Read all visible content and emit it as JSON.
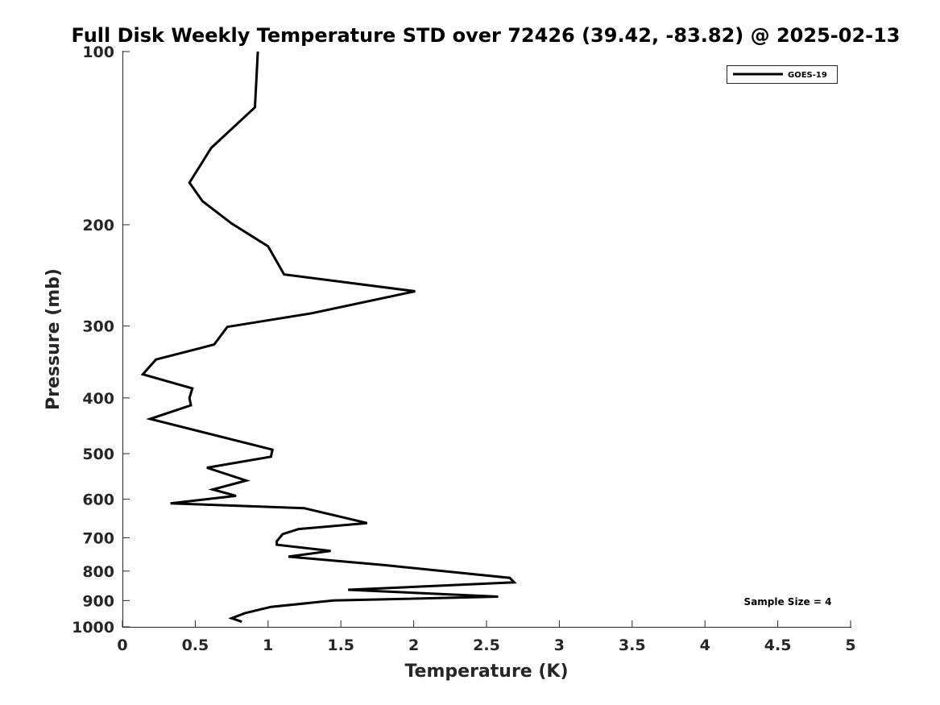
{
  "chart_data": {
    "type": "line",
    "title": "Full Disk Weekly Temperature STD over 72426 (39.42, -83.82) @ 2025-02-13",
    "xlabel": "Temperature (K)",
    "ylabel": "Pressure (mb)",
    "xlim": [
      0,
      5
    ],
    "ylim": [
      100,
      1000
    ],
    "yscale": "log",
    "yreversed": true,
    "xticks": [
      0,
      0.5,
      1,
      1.5,
      2,
      2.5,
      3,
      3.5,
      4,
      4.5,
      5
    ],
    "xtick_labels": [
      "0",
      "0.5",
      "1",
      "1.5",
      "2",
      "2.5",
      "3",
      "3.5",
      "4",
      "4.5",
      "5"
    ],
    "yticks": [
      100,
      200,
      300,
      400,
      500,
      600,
      700,
      800,
      900,
      1000
    ],
    "ytick_labels": [
      "100",
      "200",
      "300",
      "400",
      "500",
      "600",
      "700",
      "800",
      "900",
      "1000"
    ],
    "grid": false,
    "legend_position": "top-right",
    "annotation": "Sample Size = 4",
    "series": [
      {
        "name": "GOES-19",
        "color": "#000000",
        "x": [
          0.93,
          0.91,
          0.61,
          0.46,
          0.55,
          0.75,
          1.0,
          1.11,
          2.01,
          1.3,
          0.72,
          0.63,
          0.23,
          0.14,
          0.48,
          0.46,
          0.47,
          0.19,
          1.03,
          1.02,
          0.58,
          0.85,
          0.62,
          0.78,
          0.33,
          1.25,
          1.68,
          1.21,
          1.1,
          1.06,
          1.06,
          1.43,
          1.14,
          1.8,
          2.66,
          2.69,
          1.55,
          2.58,
          1.45,
          1.02,
          0.84,
          0.75,
          0.82
        ],
        "y": [
          100,
          125,
          147,
          169,
          182,
          199,
          218,
          244,
          261,
          285,
          301,
          323,
          343,
          364,
          385,
          400,
          412,
          435,
          492,
          506,
          529,
          557,
          577,
          592,
          610,
          622,
          660,
          676,
          690,
          710,
          720,
          738,
          755,
          781,
          822,
          837,
          862,
          886,
          900,
          923,
          947,
          966,
          980
        ]
      }
    ]
  }
}
